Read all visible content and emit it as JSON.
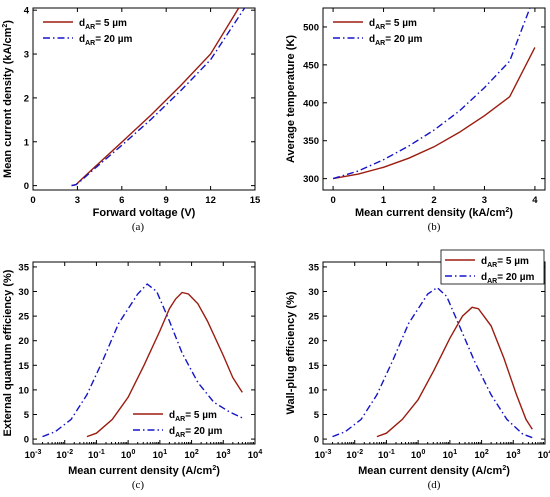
{
  "colors": {
    "d5": "#9b1c10",
    "d20": "#1414c8",
    "axis": "#000000"
  },
  "chart_data": [
    {
      "id": "a",
      "type": "line",
      "panel_label": "(a)",
      "xlabel": "Forward voltage (V)",
      "ylabel": "Mean current density (kA/cm²)",
      "xlim": [
        0,
        15
      ],
      "ylim": [
        -0.1,
        4.05
      ],
      "xticks": [
        0,
        3,
        6,
        9,
        12,
        15
      ],
      "yticks": [
        0,
        1,
        2,
        3,
        4
      ],
      "legend": "top-left",
      "series": [
        {
          "name": "dAR= 5 µm",
          "key": "d5",
          "style": "solid",
          "points": [
            [
              2.6,
              0
            ],
            [
              2.9,
              0.02
            ],
            [
              3.2,
              0.12
            ],
            [
              4,
              0.37
            ],
            [
              6,
              0.99
            ],
            [
              8,
              1.62
            ],
            [
              10,
              2.29
            ],
            [
              12,
              3.0
            ],
            [
              13.9,
              4.05
            ]
          ]
        },
        {
          "name": "dAR= 20 µm",
          "key": "d20",
          "style": "dashdot",
          "points": [
            [
              2.6,
              0
            ],
            [
              2.9,
              0.02
            ],
            [
              3.2,
              0.1
            ],
            [
              4,
              0.34
            ],
            [
              6,
              0.92
            ],
            [
              8,
              1.52
            ],
            [
              10,
              2.17
            ],
            [
              12,
              2.87
            ],
            [
              14.3,
              4.05
            ]
          ]
        }
      ]
    },
    {
      "id": "b",
      "type": "line",
      "panel_label": "(b)",
      "xlabel": "Mean current density (kA/cm²)",
      "ylabel": "Average temperature (K)",
      "xlim": [
        -0.2,
        4.2
      ],
      "ylim": [
        285,
        525
      ],
      "xticks": [
        0,
        1,
        2,
        3,
        4
      ],
      "yticks": [
        300,
        350,
        400,
        450,
        500
      ],
      "legend": "top-left",
      "series": [
        {
          "name": "dAR= 5 µm",
          "key": "d5",
          "style": "solid",
          "points": [
            [
              0,
              300
            ],
            [
              0.5,
              306
            ],
            [
              1,
              315
            ],
            [
              1.5,
              327
            ],
            [
              2,
              342
            ],
            [
              2.5,
              361
            ],
            [
              3,
              383
            ],
            [
              3.5,
              408
            ],
            [
              4,
              473
            ]
          ]
        },
        {
          "name": "dAR= 20 µm",
          "key": "d20",
          "style": "dashdot",
          "points": [
            [
              0,
              300
            ],
            [
              0.5,
              310
            ],
            [
              1,
              325
            ],
            [
              1.5,
              343
            ],
            [
              2,
              364
            ],
            [
              2.5,
              389
            ],
            [
              3,
              420
            ],
            [
              3.5,
              455
            ],
            [
              3.9,
              525
            ]
          ]
        }
      ]
    },
    {
      "id": "c",
      "type": "line",
      "panel_label": "(c)",
      "xlabel": "Mean current density (A/cm²)",
      "ylabel": "External quantum efficiency (%)",
      "xscale": "log",
      "xlim": [
        -3,
        4
      ],
      "ylim": [
        -1,
        36
      ],
      "xticks": [
        -3,
        -2,
        -1,
        0,
        1,
        2,
        3,
        4
      ],
      "yticks": [
        0,
        5,
        10,
        15,
        20,
        25,
        30,
        35
      ],
      "legend": "bottom-right",
      "series": [
        {
          "name": "dAR= 5 µm",
          "key": "d5",
          "style": "solid",
          "points": [
            [
              -1.3,
              0.5
            ],
            [
              -1,
              1.2
            ],
            [
              -0.5,
              4
            ],
            [
              0,
              8.5
            ],
            [
              0.5,
              15
            ],
            [
              1,
              22
            ],
            [
              1.3,
              26.5
            ],
            [
              1.5,
              28.5
            ],
            [
              1.7,
              29.8
            ],
            [
              1.9,
              29.5
            ],
            [
              2.2,
              27.5
            ],
            [
              2.5,
              24
            ],
            [
              3,
              17
            ],
            [
              3.3,
              12.5
            ],
            [
              3.6,
              9.5
            ]
          ]
        },
        {
          "name": "dAR= 20 µm",
          "key": "d20",
          "style": "dashdot",
          "points": [
            [
              -2.7,
              0.5
            ],
            [
              -2.3,
              1.5
            ],
            [
              -1.8,
              4
            ],
            [
              -1.3,
              9
            ],
            [
              -0.8,
              16
            ],
            [
              -0.3,
              23.5
            ],
            [
              0.3,
              29.5
            ],
            [
              0.6,
              31.5
            ],
            [
              0.9,
              30
            ],
            [
              1.3,
              24
            ],
            [
              1.7,
              17.5
            ],
            [
              2.2,
              11.5
            ],
            [
              2.7,
              7.5
            ],
            [
              3.2,
              5.5
            ],
            [
              3.6,
              4.3
            ]
          ]
        }
      ]
    },
    {
      "id": "d",
      "type": "line",
      "panel_label": "(d)",
      "xlabel": "Mean current density (A/cm²)",
      "ylabel": "Wall-plug efficiency (%)",
      "xscale": "log",
      "xlim": [
        -3,
        4
      ],
      "ylim": [
        -1,
        36
      ],
      "xticks": [
        -3,
        -2,
        -1,
        0,
        1,
        2,
        3,
        4
      ],
      "yticks": [
        0,
        5,
        10,
        15,
        20,
        25,
        30,
        35
      ],
      "legend": "top-right",
      "series": [
        {
          "name": "dAR= 5 µm",
          "key": "d5",
          "style": "solid",
          "points": [
            [
              -1.3,
              0.5
            ],
            [
              -1,
              1.2
            ],
            [
              -0.5,
              4
            ],
            [
              0,
              8
            ],
            [
              0.5,
              14
            ],
            [
              1,
              20.5
            ],
            [
              1.4,
              25
            ],
            [
              1.7,
              26.8
            ],
            [
              1.9,
              26.5
            ],
            [
              2.3,
              23
            ],
            [
              2.7,
              16.5
            ],
            [
              3.1,
              9
            ],
            [
              3.4,
              4
            ],
            [
              3.6,
              2
            ]
          ]
        },
        {
          "name": "dAR= 20 µm",
          "key": "d20",
          "style": "dashdot",
          "points": [
            [
              -2.7,
              0.5
            ],
            [
              -2.3,
              1.5
            ],
            [
              -1.8,
              4
            ],
            [
              -1.3,
              9
            ],
            [
              -0.8,
              16
            ],
            [
              -0.3,
              23.5
            ],
            [
              0.3,
              29.5
            ],
            [
              0.6,
              30.8
            ],
            [
              0.9,
              29
            ],
            [
              1.3,
              23
            ],
            [
              1.8,
              15.5
            ],
            [
              2.3,
              9
            ],
            [
              2.8,
              4
            ],
            [
              3.3,
              1
            ],
            [
              3.6,
              0.3
            ]
          ]
        }
      ]
    }
  ]
}
